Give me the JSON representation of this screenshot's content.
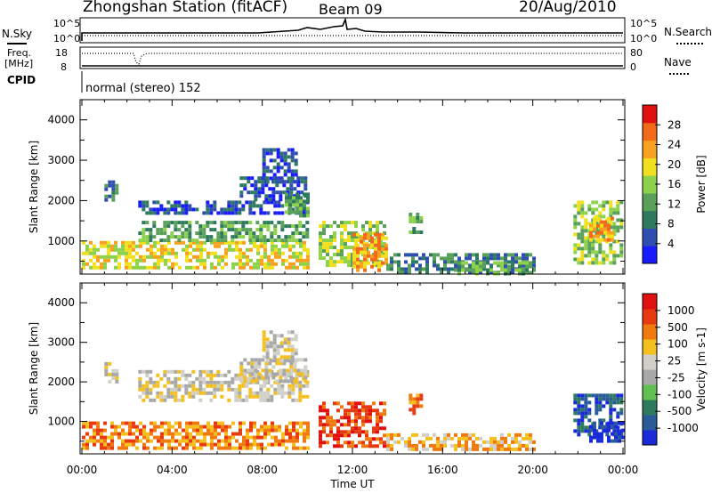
{
  "header": {
    "title": "Zhongshan Station (fitACF)",
    "beam": "Beam 09",
    "date": "20/Aug/2010"
  },
  "strip_nsky": {
    "label": "N.Sky",
    "left_ticks": [
      "10^5",
      "10^0"
    ],
    "right_label": "N.Search",
    "right_ticks": [
      "10^5",
      "10^0"
    ]
  },
  "strip_freq": {
    "label_line1": "Freq.",
    "label_line2": "[MHz]",
    "left_ticks": [
      "18",
      "8"
    ],
    "right_label": "Nave",
    "right_ticks": [
      "80",
      "0"
    ]
  },
  "cpid": {
    "label": "CPID",
    "text": "normal (stereo) 152"
  },
  "chart_data": [
    {
      "type": "heatmap",
      "variable": "power",
      "ylabel": "Slant Range [km]",
      "ylim": [
        180,
        4500
      ],
      "yticks": [
        "4000",
        "3000",
        "2000",
        "1000"
      ],
      "xlim": [
        "00:00",
        "24:00"
      ],
      "colorbar": {
        "label": "Power [dB]",
        "ticks": [
          "28",
          "24",
          "20",
          "16",
          "12",
          "8",
          "4"
        ],
        "colors": [
          "#1a1aff",
          "#2f4fb0",
          "#2e7a5e",
          "#5aa05a",
          "#8ed24c",
          "#f0e020",
          "#f8a020",
          "#f06a1a",
          "#e01010"
        ]
      },
      "echo_regions": [
        {
          "start_hour": 0.0,
          "end_hour": 10.0,
          "range_min": 350,
          "range_max": 1000,
          "level": 5
        },
        {
          "start_hour": 1.0,
          "end_hour": 1.5,
          "range_min": 2000,
          "range_max": 2500,
          "level": 2
        },
        {
          "start_hour": 2.5,
          "end_hour": 10.0,
          "range_min": 1700,
          "range_max": 2000,
          "level": 1
        },
        {
          "start_hour": 2.5,
          "end_hour": 10.0,
          "range_min": 1000,
          "range_max": 1500,
          "level": 3
        },
        {
          "start_hour": 7.0,
          "end_hour": 10.0,
          "range_min": 2000,
          "range_max": 2600,
          "level": 1
        },
        {
          "start_hour": 8.0,
          "end_hour": 9.5,
          "range_min": 2500,
          "range_max": 3300,
          "level": 1
        },
        {
          "start_hour": 9.0,
          "end_hour": 10.0,
          "range_min": 1600,
          "range_max": 2200,
          "level": 3
        },
        {
          "start_hour": 10.5,
          "end_hour": 13.5,
          "range_min": 400,
          "range_max": 1500,
          "level": 4
        },
        {
          "start_hour": 12.0,
          "end_hour": 13.5,
          "range_min": 300,
          "range_max": 1200,
          "level": 6
        },
        {
          "start_hour": 14.5,
          "end_hour": 15.0,
          "range_min": 1200,
          "range_max": 1700,
          "level": 3
        },
        {
          "start_hour": 13.5,
          "end_hour": 20.0,
          "range_min": 250,
          "range_max": 700,
          "level": 2
        },
        {
          "start_hour": 16.5,
          "end_hour": 20.0,
          "range_min": 200,
          "range_max": 500,
          "level": 3
        },
        {
          "start_hour": 21.8,
          "end_hour": 24.0,
          "range_min": 500,
          "range_max": 2000,
          "level": 4
        },
        {
          "start_hour": 22.5,
          "end_hour": 23.5,
          "range_min": 1000,
          "range_max": 1600,
          "level": 6
        }
      ]
    },
    {
      "type": "heatmap",
      "variable": "velocity",
      "ylabel": "Slant Range [km]",
      "ylim": [
        180,
        4500
      ],
      "yticks": [
        "4000",
        "3000",
        "2000",
        "1000"
      ],
      "xlim": [
        "00:00",
        "24:00"
      ],
      "xticks": [
        "00:00",
        "04:00",
        "08:00",
        "12:00",
        "16:00",
        "20:00",
        "00:00"
      ],
      "xlabel": "Time UT",
      "colorbar": {
        "label": "Velocity [m s-1]",
        "ticks": [
          "1000",
          "500",
          "100",
          "25",
          "-25",
          "-100",
          "-500",
          "-1000"
        ],
        "colors": [
          "#1a2ad8",
          "#2a5a9a",
          "#2e7a5e",
          "#60c050",
          "#a8a8a8",
          "#d0d0c8",
          "#f4c020",
          "#f07a10",
          "#e83a10",
          "#e01010"
        ]
      },
      "echo_regions": [
        {
          "start_hour": 0.0,
          "end_hour": 10.0,
          "range_min": 350,
          "range_max": 1000,
          "level": 7
        },
        {
          "start_hour": 1.0,
          "end_hour": 1.5,
          "range_min": 2000,
          "range_max": 2500,
          "level": 5
        },
        {
          "start_hour": 2.5,
          "end_hour": 10.0,
          "range_min": 1500,
          "range_max": 2300,
          "level": 5
        },
        {
          "start_hour": 7.0,
          "end_hour": 10.0,
          "range_min": 2000,
          "range_max": 2600,
          "level": 5
        },
        {
          "start_hour": 8.0,
          "end_hour": 9.5,
          "range_min": 2500,
          "range_max": 3300,
          "level": 5
        },
        {
          "start_hour": 10.5,
          "end_hour": 13.5,
          "range_min": 400,
          "range_max": 1500,
          "level": 8
        },
        {
          "start_hour": 14.5,
          "end_hour": 15.0,
          "range_min": 1200,
          "range_max": 1700,
          "level": 7
        },
        {
          "start_hour": 13.5,
          "end_hour": 20.0,
          "range_min": 250,
          "range_max": 700,
          "level": 6
        },
        {
          "start_hour": 21.8,
          "end_hour": 24.0,
          "range_min": 700,
          "range_max": 1700,
          "level": 1
        },
        {
          "start_hour": 22.5,
          "end_hour": 24.0,
          "range_min": 500,
          "range_max": 1000,
          "level": 0
        }
      ]
    }
  ]
}
